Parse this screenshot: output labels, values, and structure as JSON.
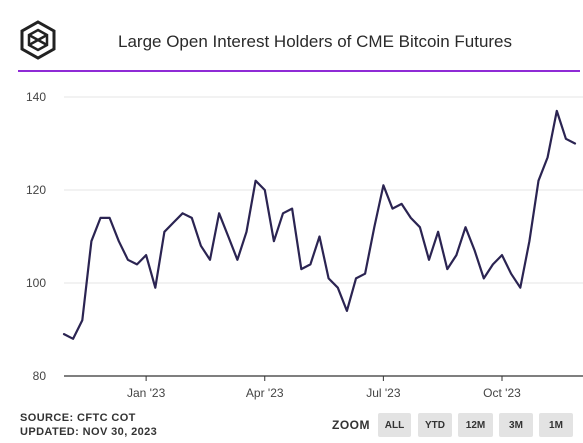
{
  "header": {
    "logo_icon": "cube-logo-icon",
    "title": "Large Open Interest Holders of CME Bitcoin Futures",
    "rule_color": "#8f2bd6"
  },
  "footer": {
    "source": "SOURCE: CFTC COT",
    "updated": "UPDATED: NOV 30, 2023"
  },
  "zoom": {
    "label": "ZOOM",
    "buttons": [
      "ALL",
      "YTD",
      "12M",
      "3M",
      "1M"
    ]
  },
  "chart_data": {
    "type": "line",
    "title": "Large Open Interest Holders of CME Bitcoin Futures",
    "xlabel": "",
    "ylabel": "",
    "ylim": [
      80,
      140
    ],
    "yticks": [
      80,
      100,
      120,
      140
    ],
    "xticks": [
      "Jan '23",
      "Apr '23",
      "Jul '23",
      "Oct '23"
    ],
    "xtick_positions": [
      9,
      22,
      35,
      48
    ],
    "grid": true,
    "legend": "none",
    "line_color": "#2b2452",
    "series": [
      {
        "values": [
          89,
          88,
          92,
          109,
          114,
          114,
          109,
          105,
          104,
          106,
          99,
          111,
          113,
          115,
          114,
          108,
          105,
          115,
          110,
          105,
          111,
          122,
          120,
          109,
          115,
          116,
          103,
          104,
          110,
          101,
          99,
          94,
          101,
          102,
          112,
          121,
          116,
          117,
          114,
          112,
          105,
          111,
          103,
          106,
          112,
          107,
          101,
          104,
          106,
          102,
          99,
          109,
          122,
          127,
          137,
          131,
          130
        ]
      }
    ]
  }
}
